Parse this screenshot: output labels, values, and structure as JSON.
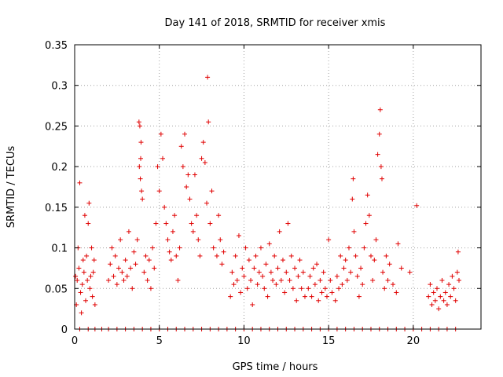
{
  "chart_data": {
    "type": "scatter",
    "title": "Day 141 of 2018, SRMTID for receiver xmis",
    "xlabel": "GPS time / hours",
    "ylabel": "SRMTID / TECUs",
    "xlim": [
      0,
      24
    ],
    "ylim": [
      0,
      0.35
    ],
    "xticks": [
      0,
      5,
      10,
      15,
      20
    ],
    "xtick_labels": [
      "0",
      "5",
      "10",
      "15",
      "20"
    ],
    "yticks": [
      0,
      0.05,
      0.1,
      0.15,
      0.2,
      0.25,
      0.3,
      0.35
    ],
    "ytick_labels": [
      "0",
      "0.05",
      "0.1",
      "0.15",
      "0.2",
      "0.25",
      "0.3",
      "0.35"
    ],
    "grid": true,
    "marker": "+",
    "color": "#e00000",
    "series": [
      {
        "name": "SRMTID",
        "points": [
          [
            0.05,
            0.065
          ],
          [
            0.1,
            0.03
          ],
          [
            0.15,
            0.06
          ],
          [
            0.2,
            0.1
          ],
          [
            0.25,
            0.075
          ],
          [
            0.3,
            0.18
          ],
          [
            0.35,
            0.045
          ],
          [
            0.4,
            0.02
          ],
          [
            0.45,
            0.055
          ],
          [
            0.5,
            0.085
          ],
          [
            0.55,
            0.07
          ],
          [
            0.6,
            0.14
          ],
          [
            0.65,
            0.035
          ],
          [
            0.7,
            0.09
          ],
          [
            0.75,
            0.06
          ],
          [
            0.8,
            0.13
          ],
          [
            0.85,
            0.155
          ],
          [
            0.9,
            0.05
          ],
          [
            0.95,
            0.065
          ],
          [
            1.0,
            0.1
          ],
          [
            1.05,
            0.04
          ],
          [
            1.1,
            0.07
          ],
          [
            1.15,
            0.085
          ],
          [
            1.2,
            0.03
          ],
          [
            2.0,
            0.06
          ],
          [
            2.1,
            0.08
          ],
          [
            2.2,
            0.1
          ],
          [
            2.3,
            0.065
          ],
          [
            2.4,
            0.09
          ],
          [
            2.5,
            0.055
          ],
          [
            2.6,
            0.075
          ],
          [
            2.7,
            0.11
          ],
          [
            2.8,
            0.07
          ],
          [
            2.9,
            0.06
          ],
          [
            3.0,
            0.085
          ],
          [
            3.1,
            0.065
          ],
          [
            3.2,
            0.12
          ],
          [
            3.3,
            0.075
          ],
          [
            3.4,
            0.05
          ],
          [
            3.5,
            0.095
          ],
          [
            3.6,
            0.08
          ],
          [
            3.7,
            0.11
          ],
          [
            3.8,
            0.255
          ],
          [
            3.85,
            0.25
          ],
          [
            3.9,
            0.21
          ],
          [
            3.95,
            0.17
          ],
          [
            4.0,
            0.16
          ],
          [
            3.82,
            0.2
          ],
          [
            3.88,
            0.185
          ],
          [
            3.92,
            0.23
          ],
          [
            4.1,
            0.07
          ],
          [
            4.2,
            0.09
          ],
          [
            4.3,
            0.06
          ],
          [
            4.4,
            0.085
          ],
          [
            4.5,
            0.05
          ],
          [
            4.6,
            0.1
          ],
          [
            4.7,
            0.075
          ],
          [
            4.8,
            0.13
          ],
          [
            4.9,
            0.2
          ],
          [
            5.0,
            0.17
          ],
          [
            5.1,
            0.24
          ],
          [
            5.2,
            0.21
          ],
          [
            5.3,
            0.15
          ],
          [
            5.4,
            0.13
          ],
          [
            5.5,
            0.11
          ],
          [
            5.6,
            0.095
          ],
          [
            5.7,
            0.085
          ],
          [
            5.8,
            0.12
          ],
          [
            5.9,
            0.14
          ],
          [
            6.0,
            0.09
          ],
          [
            6.1,
            0.06
          ],
          [
            6.2,
            0.1
          ],
          [
            6.3,
            0.225
          ],
          [
            6.4,
            0.2
          ],
          [
            6.5,
            0.24
          ],
          [
            6.6,
            0.175
          ],
          [
            6.7,
            0.19
          ],
          [
            6.8,
            0.16
          ],
          [
            6.9,
            0.13
          ],
          [
            7.0,
            0.12
          ],
          [
            7.1,
            0.19
          ],
          [
            7.2,
            0.14
          ],
          [
            7.3,
            0.11
          ],
          [
            7.4,
            0.09
          ],
          [
            7.5,
            0.21
          ],
          [
            7.6,
            0.23
          ],
          [
            7.7,
            0.205
          ],
          [
            7.8,
            0.155
          ],
          [
            7.85,
            0.31
          ],
          [
            7.9,
            0.255
          ],
          [
            8.0,
            0.13
          ],
          [
            8.1,
            0.17
          ],
          [
            8.2,
            0.1
          ],
          [
            8.4,
            0.09
          ],
          [
            8.5,
            0.14
          ],
          [
            8.6,
            0.11
          ],
          [
            8.7,
            0.08
          ],
          [
            8.8,
            0.095
          ],
          [
            9.2,
            0.04
          ],
          [
            9.3,
            0.07
          ],
          [
            9.4,
            0.055
          ],
          [
            9.5,
            0.09
          ],
          [
            9.6,
            0.06
          ],
          [
            9.7,
            0.115
          ],
          [
            9.8,
            0.045
          ],
          [
            9.9,
            0.075
          ],
          [
            10.0,
            0.065
          ],
          [
            10.1,
            0.1
          ],
          [
            10.2,
            0.05
          ],
          [
            10.3,
            0.085
          ],
          [
            10.4,
            0.06
          ],
          [
            10.5,
            0.03
          ],
          [
            10.6,
            0.075
          ],
          [
            10.7,
            0.09
          ],
          [
            10.8,
            0.055
          ],
          [
            10.9,
            0.07
          ],
          [
            11.0,
            0.1
          ],
          [
            11.1,
            0.065
          ],
          [
            11.2,
            0.05
          ],
          [
            11.3,
            0.08
          ],
          [
            11.4,
            0.04
          ],
          [
            11.5,
            0.105
          ],
          [
            11.6,
            0.07
          ],
          [
            11.7,
            0.06
          ],
          [
            11.8,
            0.09
          ],
          [
            11.9,
            0.055
          ],
          [
            12.0,
            0.075
          ],
          [
            12.1,
            0.12
          ],
          [
            12.2,
            0.06
          ],
          [
            12.3,
            0.085
          ],
          [
            12.4,
            0.045
          ],
          [
            12.5,
            0.07
          ],
          [
            12.6,
            0.13
          ],
          [
            12.7,
            0.06
          ],
          [
            12.8,
            0.09
          ],
          [
            12.9,
            0.05
          ],
          [
            13.0,
            0.075
          ],
          [
            13.1,
            0.035
          ],
          [
            13.2,
            0.065
          ],
          [
            13.3,
            0.085
          ],
          [
            13.4,
            0.05
          ],
          [
            13.5,
            0.07
          ],
          [
            13.6,
            0.04
          ],
          [
            13.8,
            0.05
          ],
          [
            13.9,
            0.065
          ],
          [
            14.0,
            0.04
          ],
          [
            14.1,
            0.075
          ],
          [
            14.2,
            0.055
          ],
          [
            14.3,
            0.08
          ],
          [
            14.4,
            0.035
          ],
          [
            14.5,
            0.06
          ],
          [
            14.6,
            0.045
          ],
          [
            14.7,
            0.07
          ],
          [
            14.8,
            0.05
          ],
          [
            14.9,
            0.04
          ],
          [
            15.0,
            0.11
          ],
          [
            15.1,
            0.06
          ],
          [
            15.2,
            0.045
          ],
          [
            15.4,
            0.035
          ],
          [
            15.5,
            0.065
          ],
          [
            15.6,
            0.05
          ],
          [
            15.7,
            0.09
          ],
          [
            15.8,
            0.055
          ],
          [
            15.9,
            0.075
          ],
          [
            16.0,
            0.085
          ],
          [
            16.1,
            0.06
          ],
          [
            16.2,
            0.1
          ],
          [
            16.3,
            0.07
          ],
          [
            16.4,
            0.16
          ],
          [
            16.45,
            0.185
          ],
          [
            16.5,
            0.12
          ],
          [
            16.6,
            0.09
          ],
          [
            16.7,
            0.065
          ],
          [
            16.8,
            0.04
          ],
          [
            16.9,
            0.075
          ],
          [
            17.0,
            0.055
          ],
          [
            17.1,
            0.1
          ],
          [
            17.2,
            0.13
          ],
          [
            17.3,
            0.165
          ],
          [
            17.4,
            0.14
          ],
          [
            17.5,
            0.09
          ],
          [
            17.6,
            0.06
          ],
          [
            17.7,
            0.085
          ],
          [
            17.8,
            0.11
          ],
          [
            17.9,
            0.215
          ],
          [
            18.0,
            0.24
          ],
          [
            18.05,
            0.27
          ],
          [
            18.1,
            0.2
          ],
          [
            18.15,
            0.185
          ],
          [
            18.2,
            0.07
          ],
          [
            18.3,
            0.05
          ],
          [
            18.4,
            0.09
          ],
          [
            18.5,
            0.06
          ],
          [
            18.6,
            0.08
          ],
          [
            18.8,
            0.055
          ],
          [
            19.0,
            0.045
          ],
          [
            19.1,
            0.105
          ],
          [
            19.3,
            0.075
          ],
          [
            19.8,
            0.07
          ],
          [
            20.2,
            0.152
          ],
          [
            20.9,
            0.04
          ],
          [
            21.0,
            0.055
          ],
          [
            21.1,
            0.03
          ],
          [
            21.2,
            0.045
          ],
          [
            21.3,
            0.035
          ],
          [
            21.4,
            0.05
          ],
          [
            21.5,
            0.025
          ],
          [
            21.6,
            0.04
          ],
          [
            21.7,
            0.06
          ],
          [
            21.8,
            0.035
          ],
          [
            21.9,
            0.045
          ],
          [
            22.0,
            0.03
          ],
          [
            22.1,
            0.055
          ],
          [
            22.2,
            0.04
          ],
          [
            22.3,
            0.065
          ],
          [
            22.4,
            0.05
          ],
          [
            22.5,
            0.035
          ],
          [
            22.6,
            0.07
          ],
          [
            22.65,
            0.095
          ],
          [
            22.7,
            0.06
          ],
          [
            0.3,
            0.0
          ],
          [
            0.8,
            0.0
          ],
          [
            1.2,
            0.0
          ],
          [
            1.6,
            0.0
          ],
          [
            2.0,
            0.0
          ],
          [
            2.5,
            0.0
          ],
          [
            3.0,
            0.0
          ],
          [
            3.5,
            0.0
          ],
          [
            4.0,
            0.0
          ],
          [
            4.5,
            0.0
          ],
          [
            5.0,
            0.0
          ],
          [
            5.5,
            0.0
          ],
          [
            6.0,
            0.0
          ],
          [
            6.5,
            0.0
          ],
          [
            7.0,
            0.0
          ],
          [
            7.5,
            0.0
          ],
          [
            8.0,
            0.0
          ],
          [
            8.5,
            0.0
          ],
          [
            9.0,
            0.0
          ],
          [
            9.5,
            0.0
          ],
          [
            10.0,
            0.0
          ],
          [
            10.5,
            0.0
          ],
          [
            11.0,
            0.0
          ],
          [
            11.5,
            0.0
          ],
          [
            12.0,
            0.0
          ],
          [
            12.5,
            0.0
          ],
          [
            13.0,
            0.0
          ],
          [
            13.5,
            0.0
          ],
          [
            14.0,
            0.0
          ],
          [
            14.5,
            0.0
          ],
          [
            15.0,
            0.0
          ],
          [
            15.5,
            0.0
          ],
          [
            16.0,
            0.0
          ],
          [
            16.5,
            0.0
          ],
          [
            17.0,
            0.0
          ],
          [
            17.5,
            0.0
          ],
          [
            18.0,
            0.0
          ],
          [
            18.5,
            0.0
          ],
          [
            19.0,
            0.0
          ],
          [
            19.5,
            0.0
          ],
          [
            20.0,
            0.0
          ],
          [
            20.5,
            0.0
          ],
          [
            21.0,
            0.0
          ],
          [
            21.5,
            0.0
          ],
          [
            22.0,
            0.0
          ],
          [
            22.5,
            0.0
          ]
        ]
      }
    ]
  }
}
